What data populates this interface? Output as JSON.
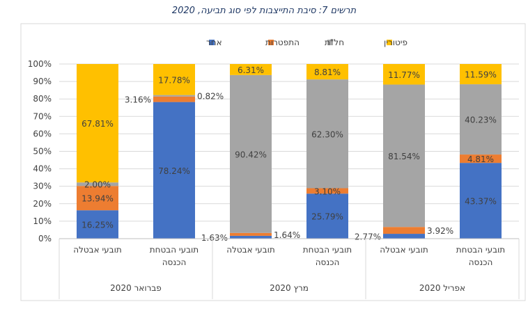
{
  "chart_data": {
    "type": "bar",
    "stacked": true,
    "percent": true,
    "title": "תרשים 7: סיבת התייצבות לפי סוג תביעה, 2020",
    "xlabel": "",
    "ylabel": "",
    "ylim": [
      0,
      100
    ],
    "yticks": [
      "0%",
      "10%",
      "20%",
      "30%",
      "40%",
      "50%",
      "60%",
      "70%",
      "80%",
      "90%",
      "100%"
    ],
    "grid": true,
    "legend_position": "top",
    "groups": [
      {
        "label": "פברואר 2020",
        "categories": [
          "תובעי אבטלה",
          "תובעי הבטחת הכנסה"
        ]
      },
      {
        "label": "מרץ 2020",
        "categories": [
          "תובעי אבטלה",
          "תובעי הבטחת הכנסה"
        ]
      },
      {
        "label": "אפריל 2020",
        "categories": [
          "תובעי אבטלה",
          "תובעי הבטחת הכנסה"
        ]
      }
    ],
    "series": [
      {
        "name": "אחר",
        "color": "#4472c4",
        "values": [
          16.25,
          78.24,
          1.63,
          25.79,
          2.77,
          43.37
        ]
      },
      {
        "name": "התפטרות",
        "color": "#ed7d31",
        "values": [
          13.94,
          3.16,
          1.64,
          3.1,
          3.92,
          4.81
        ]
      },
      {
        "name": "חל\"ת",
        "color": "#a5a5a5",
        "values": [
          2.0,
          0.82,
          90.42,
          62.3,
          81.54,
          40.23
        ]
      },
      {
        "name": "פיטורין",
        "color": "#ffc000",
        "values": [
          67.81,
          17.78,
          6.31,
          8.81,
          11.77,
          11.59
        ]
      }
    ]
  }
}
